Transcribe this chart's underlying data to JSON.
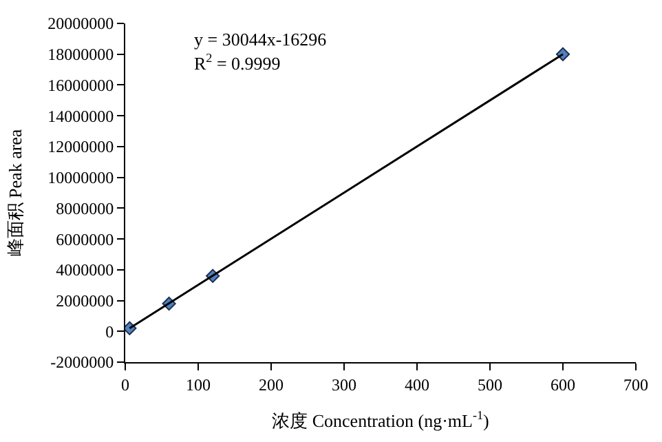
{
  "chart_data": {
    "type": "scatter",
    "xlabel": "浓度 Concentration (ng·mL$^{-1}$)",
    "ylabel": "峰面积 Peak area",
    "annotations": [
      "y = 30044x-16296",
      "R$^{2}$ = 0.9999"
    ],
    "series": [
      {
        "x": [
          6,
          60,
          120,
          600
        ],
        "values": [
          200000,
          1800000,
          3600000,
          18000000
        ],
        "color": "#4f81bd",
        "marker": "diamond"
      },
      {
        "type": "line",
        "x": [
          6,
          600
        ],
        "values": [
          200000,
          18000000
        ],
        "color": "#000000",
        "marker": "none"
      }
    ],
    "xlim": [
      0,
      700
    ],
    "xticks": [
      0,
      100,
      200,
      300,
      400,
      500,
      600,
      700
    ],
    "ylim": [
      -2000000,
      20000000
    ],
    "yticks": [
      -2000000,
      0,
      2000000,
      4000000,
      6000000,
      8000000,
      10000000,
      12000000,
      14000000,
      16000000,
      18000000,
      20000000
    ],
    "legend": false
  }
}
